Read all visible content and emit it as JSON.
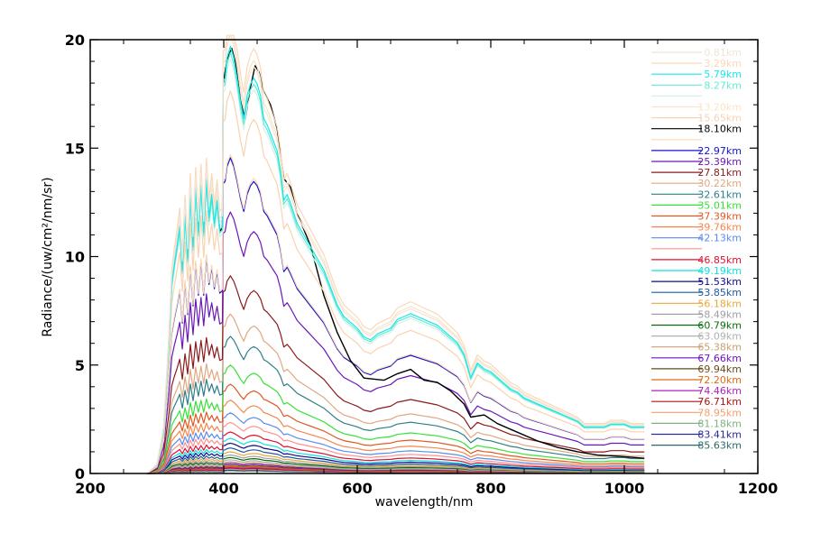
{
  "chart_data": {
    "type": "line",
    "title": "",
    "xlabel": "wavelength/nm",
    "ylabel": "Radiance/(uw/cm²/nm/sr)",
    "xlim": [
      200,
      1200
    ],
    "ylim": [
      0,
      20
    ],
    "x_ticks": [
      200,
      400,
      600,
      800,
      1000,
      1200
    ],
    "y_ticks": [
      0,
      5,
      10,
      15,
      20
    ],
    "x_tick_labels": [
      "200",
      "400",
      "600",
      "800",
      "1000",
      "1200"
    ],
    "y_tick_labels": [
      "0",
      "5",
      "10",
      "15",
      "20"
    ],
    "grid": false,
    "legend_position": "right",
    "reference_spectrum": {
      "x": [
        285,
        300,
        310,
        318,
        322,
        326,
        330,
        334,
        338,
        342,
        346,
        350,
        354,
        358,
        362,
        366,
        370,
        374,
        378,
        382,
        386,
        390,
        394,
        398,
        399,
        402,
        405,
        410,
        415,
        420,
        425,
        430,
        435,
        440,
        445,
        450,
        455,
        460,
        465,
        470,
        475,
        480,
        485,
        490,
        495,
        500,
        510,
        520,
        530,
        540,
        550,
        560,
        570,
        580,
        590,
        600,
        610,
        620,
        630,
        640,
        650,
        660,
        670,
        680,
        690,
        700,
        710,
        720,
        730,
        740,
        750,
        760,
        770,
        780,
        790,
        800,
        810,
        820,
        830,
        840,
        850,
        860,
        870,
        880,
        890,
        900,
        910,
        920,
        930,
        940,
        950,
        960,
        970,
        980,
        990,
        1000,
        1010,
        1020,
        1030
      ],
      "y": [
        0.0,
        0.3,
        1.5,
        4.5,
        6.5,
        7.2,
        7.8,
        8.5,
        7.0,
        8.9,
        7.4,
        9.6,
        7.8,
        9.8,
        8.3,
        9.9,
        8.3,
        10.1,
        8.8,
        9.6,
        8.6,
        9.4,
        8.4,
        8.5,
        13.5,
        13.6,
        14.3,
        14.7,
        14.3,
        13.6,
        12.8,
        12.2,
        13.0,
        13.4,
        13.6,
        13.4,
        13.0,
        12.2,
        12.0,
        11.7,
        11.4,
        11.1,
        10.4,
        9.4,
        9.6,
        9.3,
        8.6,
        8.2,
        7.8,
        7.4,
        7.0,
        6.4,
        5.8,
        5.4,
        5.2,
        5.0,
        4.7,
        4.6,
        4.8,
        4.9,
        5.0,
        5.3,
        5.4,
        5.5,
        5.4,
        5.3,
        5.2,
        5.1,
        4.9,
        4.7,
        4.5,
        4.1,
        3.3,
        3.8,
        3.6,
        3.5,
        3.3,
        3.1,
        2.9,
        2.8,
        2.6,
        2.5,
        2.4,
        2.3,
        2.2,
        2.1,
        2.0,
        1.9,
        1.8,
        1.6,
        1.6,
        1.6,
        1.6,
        1.7,
        1.7,
        1.7,
        1.6,
        1.6,
        1.6
      ]
    },
    "series": [
      {
        "name": "0.81km",
        "color": "#f2e4d6",
        "scale": 1.4
      },
      {
        "name": "3.29km",
        "color": "#fad8b6",
        "scale": 1.44
      },
      {
        "name": "5.79km",
        "color": "#17e8e8",
        "scale": 1.34
      },
      {
        "name": "8.27km",
        "color": "#66ead2",
        "scale": 1.32
      },
      {
        "name": "",
        "color": "#d4f2ea",
        "scale": 1.3
      },
      {
        "name": "13.20km",
        "color": "#fbe4c8",
        "scale": 1.38
      },
      {
        "name": "15.65km",
        "color": "#f9d2b0",
        "scale": 1.2
      },
      {
        "name": "18.10km",
        "color": "#000000",
        "scale": 1.33,
        "markers": [
          [
            405,
            19.1
          ],
          [
            412,
            19.6
          ],
          [
            418,
            18.9
          ],
          [
            425,
            17.2
          ],
          [
            432,
            16.3
          ],
          [
            440,
            17.8
          ],
          [
            447,
            18.8
          ],
          [
            453,
            18.5
          ],
          [
            460,
            17.6
          ],
          [
            470,
            17.0
          ],
          [
            480,
            15.9
          ],
          [
            490,
            13.6
          ],
          [
            500,
            13.2
          ],
          [
            510,
            12.0
          ],
          [
            530,
            10.5
          ],
          [
            550,
            8.2
          ],
          [
            570,
            6.5
          ],
          [
            590,
            5.2
          ],
          [
            610,
            4.4
          ],
          [
            640,
            4.3
          ],
          [
            660,
            4.6
          ],
          [
            680,
            4.8
          ],
          [
            700,
            4.3
          ],
          [
            720,
            4.2
          ],
          [
            740,
            3.8
          ],
          [
            760,
            3.2
          ],
          [
            770,
            2.6
          ],
          [
            790,
            2.7
          ],
          [
            810,
            2.3
          ],
          [
            840,
            1.9
          ],
          [
            870,
            1.5
          ],
          [
            900,
            1.2
          ],
          [
            930,
            1.0
          ],
          [
            960,
            0.85
          ],
          [
            990,
            0.8
          ],
          [
            1030,
            0.7
          ]
        ]
      },
      {
        "name": "",
        "color": "#fbd8b4",
        "scale": 1.0
      },
      {
        "name": "22.97km",
        "color": "#1414d4",
        "scale": 0.99
      },
      {
        "name": "25.39km",
        "color": "#6a18b8",
        "scale": 0.82
      },
      {
        "name": "27.81km",
        "color": "#8b1a1a",
        "scale": 0.62
      },
      {
        "name": "30.22km",
        "color": "#e0a880",
        "scale": 0.5
      },
      {
        "name": "32.61km",
        "color": "#2e7f8a",
        "scale": 0.43
      },
      {
        "name": "35.01km",
        "color": "#38e038",
        "scale": 0.34
      },
      {
        "name": "37.39km",
        "color": "#e05822",
        "scale": 0.28
      },
      {
        "name": "39.76km",
        "color": "#f4884e",
        "scale": 0.23
      },
      {
        "name": "42.13km",
        "color": "#5a8af0",
        "scale": 0.19
      },
      {
        "name": "",
        "color": "#ff9090",
        "scale": 0.16
      },
      {
        "name": "46.85km",
        "color": "#e01030",
        "scale": 0.13
      },
      {
        "name": "49.19km",
        "color": "#10e0e0",
        "scale": 0.11
      },
      {
        "name": "51.53km",
        "color": "#0c0c8a",
        "scale": 0.095
      },
      {
        "name": "53.85km",
        "color": "#1e5aa0",
        "scale": 0.08
      },
      {
        "name": "56.18km",
        "color": "#e8a83a",
        "scale": 0.068
      },
      {
        "name": "58.49km",
        "color": "#a0a0a0",
        "scale": 0.058
      },
      {
        "name": "60.79km",
        "color": "#0a6a0a",
        "scale": 0.05
      },
      {
        "name": "63.09km",
        "color": "#b0b0b0",
        "scale": 0.043
      },
      {
        "name": "65.38km",
        "color": "#c8a070",
        "scale": 0.037
      },
      {
        "name": "67.66km",
        "color": "#7010c8",
        "scale": 0.032
      },
      {
        "name": "69.94km",
        "color": "#6a4a1a",
        "scale": 0.027
      },
      {
        "name": "72.20km",
        "color": "#e06a10",
        "scale": 0.023
      },
      {
        "name": "74.46km",
        "color": "#b020c0",
        "scale": 0.02
      },
      {
        "name": "76.71km",
        "color": "#b01010",
        "scale": 0.017
      },
      {
        "name": "78.95km",
        "color": "#f0a070",
        "scale": 0.015
      },
      {
        "name": "81.18km",
        "color": "#80b080",
        "scale": 0.013
      },
      {
        "name": "83.41km",
        "color": "#2a2a9a",
        "scale": 0.011
      },
      {
        "name": "85.63km",
        "color": "#2a6a6a",
        "scale": 0.009
      }
    ]
  }
}
